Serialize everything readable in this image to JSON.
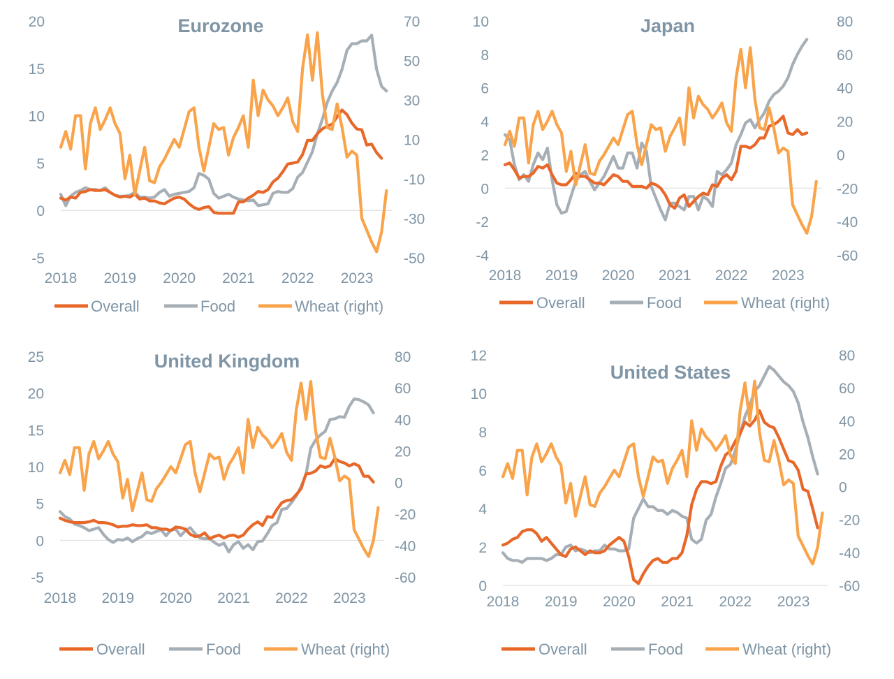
{
  "colors": {
    "overall": "#e8682a",
    "food": "#a7afb6",
    "wheat": "#f9a34b",
    "text": "#7f95a5",
    "title": "#7f95a5"
  },
  "legend": {
    "overall": "Overall",
    "food": "Food",
    "wheat": "Wheat (right)"
  },
  "chart_data": [
    {
      "type": "line",
      "title": "Eurozone",
      "x_range": [
        2018,
        2023.6
      ],
      "x_ticks": [
        "2018",
        "2019",
        "2020",
        "2021",
        "2022",
        "2023"
      ],
      "y_left": {
        "min": -5,
        "max": 20,
        "ticks": [
          "-5",
          "0",
          "5",
          "10",
          "15",
          "20"
        ]
      },
      "y_right": {
        "min": -50,
        "max": 70,
        "ticks": [
          "-50",
          "-30",
          "-10",
          "10",
          "30",
          "50",
          "70"
        ]
      },
      "series": [
        {
          "name": "Overall",
          "axis": "left",
          "start": 2018,
          "step": 0.0833,
          "values": [
            1.3,
            1.1,
            1.4,
            1.3,
            1.9,
            2.0,
            2.2,
            2.1,
            2.1,
            2.2,
            1.9,
            1.6,
            1.4,
            1.5,
            1.4,
            1.7,
            1.2,
            1.3,
            1.0,
            1.0,
            0.8,
            0.7,
            1.0,
            1.3,
            1.4,
            1.2,
            0.7,
            0.3,
            0.1,
            0.3,
            0.4,
            -0.2,
            -0.3,
            -0.3,
            -0.3,
            -0.3,
            0.9,
            0.9,
            1.3,
            1.6,
            2.0,
            1.9,
            2.2,
            3.0,
            3.4,
            4.1,
            4.9,
            5.0,
            5.1,
            5.9,
            7.4,
            7.4,
            8.1,
            8.6,
            8.9,
            9.1,
            9.9,
            10.6,
            10.1,
            9.2,
            8.6,
            8.5,
            6.9,
            7.0,
            6.1,
            5.5
          ]
        },
        {
          "name": "Food",
          "axis": "left",
          "start": 2018,
          "step": 0.0833,
          "values": [
            1.7,
            0.5,
            1.5,
            1.9,
            2.1,
            2.4,
            2.2,
            2.2,
            2.1,
            2.4,
            1.9,
            1.6,
            1.5,
            1.5,
            1.6,
            1.9,
            1.4,
            1.4,
            1.3,
            1.4,
            1.9,
            2.2,
            1.5,
            1.7,
            1.8,
            1.9,
            2.0,
            2.4,
            3.9,
            3.7,
            3.3,
            1.8,
            1.3,
            1.5,
            1.7,
            1.4,
            1.2,
            1.1,
            1.0,
            1.1,
            0.5,
            0.6,
            0.7,
            1.8,
            2.0,
            1.9,
            1.9,
            2.3,
            3.5,
            4.0,
            5.1,
            6.2,
            8.1,
            9.6,
            11.4,
            12.6,
            13.5,
            14.9,
            16.9,
            17.6,
            17.6,
            17.9,
            17.9,
            18.5,
            14.9,
            13.1,
            12.6
          ]
        },
        {
          "name": "Wheat (right)",
          "axis": "right",
          "start": 2018,
          "step": 0.0833,
          "values": [
            6,
            14,
            5,
            22,
            22,
            -5,
            18,
            26,
            15,
            20,
            26,
            18,
            13,
            -10,
            2,
            -18,
            -6,
            6,
            -11,
            -12,
            -4,
            0,
            5,
            10,
            6,
            15,
            24,
            26,
            6,
            -6,
            6,
            18,
            15,
            16,
            2,
            11,
            16,
            22,
            6,
            40,
            22,
            35,
            30,
            27,
            22,
            26,
            31,
            19,
            14,
            46,
            63,
            40,
            64,
            33,
            16,
            15,
            28,
            16,
            1,
            4,
            2,
            -30,
            -36,
            -42,
            -47,
            -37,
            -16
          ]
        }
      ]
    },
    {
      "type": "line",
      "title": "Japan",
      "x_range": [
        2018,
        2023.6
      ],
      "x_ticks": [
        "2018",
        "2019",
        "2020",
        "2021",
        "2022",
        "2023"
      ],
      "y_left": {
        "min": -4,
        "max": 10,
        "ticks": [
          "-4",
          "-2",
          "0",
          "2",
          "4",
          "6",
          "8",
          "10"
        ]
      },
      "y_right": {
        "min": -60,
        "max": 80,
        "ticks": [
          "-60",
          "-40",
          "-20",
          "0",
          "20",
          "40",
          "60",
          "80"
        ]
      },
      "series": [
        {
          "name": "Overall",
          "axis": "left",
          "start": 2018,
          "step": 0.0833,
          "values": [
            1.4,
            1.5,
            1.1,
            0.6,
            0.7,
            0.7,
            0.9,
            1.3,
            1.2,
            1.4,
            0.8,
            0.3,
            0.2,
            0.2,
            0.5,
            0.9,
            0.7,
            0.7,
            0.5,
            0.3,
            0.3,
            0.2,
            0.5,
            0.8,
            0.7,
            0.4,
            0.4,
            0.1,
            0.1,
            0.1,
            0.0,
            0.3,
            0.2,
            0.0,
            -0.4,
            -1.0,
            -1.2,
            -0.6,
            -0.4,
            -1.1,
            -0.8,
            -0.5,
            -0.3,
            -0.4,
            0.2,
            0.1,
            0.6,
            0.8,
            0.5,
            1.0,
            2.5,
            2.5,
            2.4,
            2.6,
            3.0,
            3.0,
            3.7,
            3.8,
            4.0,
            4.3,
            3.3,
            3.2,
            3.5,
            3.2,
            3.3
          ]
        },
        {
          "name": "Food",
          "axis": "left",
          "start": 2018,
          "step": 0.0833,
          "values": [
            3.2,
            2.9,
            1.4,
            0.5,
            0.8,
            0.4,
            1.4,
            2.1,
            1.7,
            2.4,
            0.5,
            -1.0,
            -1.5,
            -1.4,
            -0.5,
            0.4,
            0.8,
            1.0,
            0.4,
            -0.1,
            0.3,
            0.7,
            1.3,
            1.9,
            1.2,
            1.2,
            2.1,
            2.1,
            1.2,
            2.7,
            2.2,
            0.1,
            -0.6,
            -1.3,
            -1.9,
            -0.9,
            -0.9,
            -1.1,
            -1.3,
            -0.5,
            -0.5,
            -1.3,
            -0.5,
            -0.7,
            -1.1,
            1.0,
            0.8,
            1.1,
            1.5,
            2.6,
            3.2,
            3.9,
            4.1,
            3.6,
            4.1,
            4.5,
            5.2,
            5.6,
            5.8,
            6.1,
            6.6,
            7.4,
            8.0,
            8.5,
            8.9
          ]
        },
        {
          "name": "Wheat (right)",
          "axis": "right",
          "start": 2018,
          "step": 0.0833,
          "values": [
            6,
            14,
            5,
            22,
            22,
            -5,
            18,
            26,
            15,
            20,
            26,
            18,
            13,
            -10,
            2,
            -18,
            -6,
            6,
            -11,
            -12,
            -4,
            0,
            5,
            10,
            6,
            15,
            24,
            26,
            6,
            -6,
            6,
            18,
            15,
            16,
            2,
            11,
            16,
            22,
            6,
            40,
            22,
            35,
            30,
            27,
            22,
            26,
            31,
            19,
            14,
            46,
            63,
            40,
            64,
            33,
            16,
            15,
            28,
            16,
            1,
            4,
            2,
            -30,
            -36,
            -42,
            -47,
            -37,
            -16
          ]
        }
      ]
    },
    {
      "type": "line",
      "title": "United Kingdom",
      "x_range": [
        2018,
        2023.6
      ],
      "x_ticks": [
        "2018",
        "2019",
        "2020",
        "2021",
        "2022",
        "2023"
      ],
      "y_left": {
        "min": -5,
        "max": 25,
        "ticks": [
          "-5",
          "0",
          "5",
          "10",
          "15",
          "20",
          "25"
        ]
      },
      "y_right": {
        "min": -60,
        "max": 80,
        "ticks": [
          "-60",
          "-40",
          "-20",
          "0",
          "20",
          "40",
          "60",
          "80"
        ]
      },
      "series": [
        {
          "name": "Overall",
          "axis": "left",
          "start": 2018,
          "step": 0.0833,
          "values": [
            3.0,
            2.7,
            2.5,
            2.4,
            2.4,
            2.4,
            2.5,
            2.7,
            2.4,
            2.4,
            2.3,
            2.1,
            1.8,
            1.9,
            1.9,
            2.1,
            2.0,
            2.0,
            2.1,
            1.7,
            1.7,
            1.5,
            1.5,
            1.3,
            1.8,
            1.7,
            1.5,
            0.8,
            0.5,
            0.6,
            1.0,
            0.2,
            0.5,
            0.7,
            0.3,
            0.6,
            0.7,
            0.4,
            0.7,
            1.5,
            2.1,
            2.5,
            2.0,
            3.2,
            3.1,
            4.2,
            5.1,
            5.4,
            5.5,
            6.2,
            7.0,
            9.0,
            9.1,
            9.4,
            10.1,
            9.9,
            10.1,
            11.1,
            10.7,
            10.5,
            10.1,
            10.4,
            10.1,
            8.7,
            8.7,
            7.9
          ]
        },
        {
          "name": "Food",
          "axis": "left",
          "start": 2018,
          "step": 0.0833,
          "values": [
            3.9,
            3.2,
            2.9,
            2.2,
            2.0,
            1.7,
            1.3,
            1.5,
            1.7,
            0.8,
            0.1,
            -0.3,
            0.1,
            0.0,
            0.3,
            -0.2,
            0.2,
            0.5,
            1.1,
            0.9,
            1.2,
            1.4,
            0.6,
            1.4,
            1.5,
            0.6,
            1.3,
            1.7,
            0.9,
            0.3,
            0.2,
            0.2,
            -0.3,
            -0.7,
            -0.4,
            -1.6,
            -0.6,
            -0.2,
            -1.1,
            -0.6,
            -1.3,
            -0.2,
            -0.1,
            0.9,
            2.0,
            2.4,
            4.2,
            4.3,
            5.1,
            6.0,
            7.3,
            8.9,
            12.5,
            13.6,
            14.3,
            14.8,
            16.4,
            16.5,
            16.8,
            16.7,
            18.2,
            19.2,
            19.1,
            18.8,
            18.4,
            17.3
          ]
        },
        {
          "name": "Wheat (right)",
          "axis": "right",
          "start": 2018,
          "step": 0.0833,
          "values": [
            6,
            14,
            5,
            22,
            22,
            -5,
            18,
            26,
            15,
            20,
            26,
            18,
            13,
            -10,
            2,
            -18,
            -6,
            6,
            -11,
            -12,
            -4,
            0,
            5,
            10,
            6,
            15,
            24,
            26,
            6,
            -6,
            6,
            18,
            15,
            16,
            2,
            11,
            16,
            22,
            6,
            40,
            22,
            35,
            30,
            27,
            22,
            26,
            31,
            19,
            14,
            46,
            63,
            40,
            64,
            33,
            16,
            15,
            28,
            16,
            1,
            4,
            2,
            -30,
            -36,
            -42,
            -47,
            -37,
            -16
          ]
        }
      ]
    },
    {
      "type": "line",
      "title": "United States",
      "x_range": [
        2018,
        2023.6
      ],
      "x_ticks": [
        "2018",
        "2019",
        "2020",
        "2021",
        "2022",
        "2023"
      ],
      "y_left": {
        "min": 0,
        "max": 12,
        "ticks": [
          "0",
          "2",
          "4",
          "6",
          "8",
          "10",
          "12"
        ]
      },
      "y_right": {
        "min": -60,
        "max": 80,
        "ticks": [
          "-60",
          "-40",
          "-20",
          "0",
          "20",
          "40",
          "60",
          "80"
        ]
      },
      "series": [
        {
          "name": "Overall",
          "axis": "left",
          "start": 2018,
          "step": 0.0833,
          "values": [
            2.1,
            2.2,
            2.4,
            2.5,
            2.8,
            2.9,
            2.9,
            2.7,
            2.3,
            2.5,
            2.2,
            1.9,
            1.6,
            1.5,
            1.9,
            2.0,
            1.8,
            1.6,
            1.8,
            1.7,
            1.7,
            1.8,
            2.1,
            2.3,
            2.5,
            2.3,
            1.5,
            0.3,
            0.1,
            0.6,
            1.0,
            1.3,
            1.4,
            1.2,
            1.2,
            1.4,
            1.4,
            1.7,
            2.6,
            4.2,
            5.0,
            5.4,
            5.4,
            5.3,
            5.4,
            6.2,
            6.8,
            7.0,
            7.5,
            7.9,
            8.5,
            8.3,
            8.6,
            9.1,
            8.5,
            8.3,
            8.2,
            7.7,
            7.1,
            6.5,
            6.4,
            6.0,
            5.0,
            4.9,
            4.0,
            3.0
          ]
        },
        {
          "name": "Food",
          "axis": "left",
          "start": 2018,
          "step": 0.0833,
          "values": [
            1.7,
            1.4,
            1.3,
            1.3,
            1.2,
            1.4,
            1.4,
            1.4,
            1.4,
            1.3,
            1.4,
            1.6,
            1.6,
            2.0,
            2.1,
            1.8,
            1.9,
            1.8,
            1.7,
            1.8,
            1.8,
            2.1,
            1.9,
            1.9,
            1.8,
            1.8,
            1.9,
            3.5,
            4.0,
            4.5,
            4.1,
            4.1,
            3.9,
            3.9,
            3.7,
            3.9,
            3.8,
            3.6,
            3.5,
            2.4,
            2.2,
            2.4,
            3.4,
            3.7,
            4.6,
            5.3,
            6.1,
            6.3,
            7.0,
            7.9,
            8.8,
            9.4,
            10.1,
            10.4,
            10.9,
            11.4,
            11.2,
            10.9,
            10.6,
            10.4,
            10.1,
            9.5,
            8.5,
            7.7,
            6.7,
            5.8
          ]
        },
        {
          "name": "Wheat (right)",
          "axis": "right",
          "start": 2018,
          "step": 0.0833,
          "values": [
            6,
            14,
            5,
            22,
            22,
            -5,
            18,
            26,
            15,
            20,
            26,
            18,
            13,
            -10,
            2,
            -18,
            -6,
            6,
            -11,
            -12,
            -4,
            0,
            5,
            10,
            6,
            15,
            24,
            26,
            6,
            -6,
            6,
            18,
            15,
            16,
            2,
            11,
            16,
            22,
            6,
            40,
            22,
            35,
            30,
            27,
            22,
            26,
            31,
            19,
            14,
            46,
            63,
            40,
            64,
            33,
            16,
            15,
            28,
            16,
            1,
            4,
            2,
            -30,
            -36,
            -42,
            -47,
            -37,
            -16
          ]
        }
      ]
    }
  ]
}
